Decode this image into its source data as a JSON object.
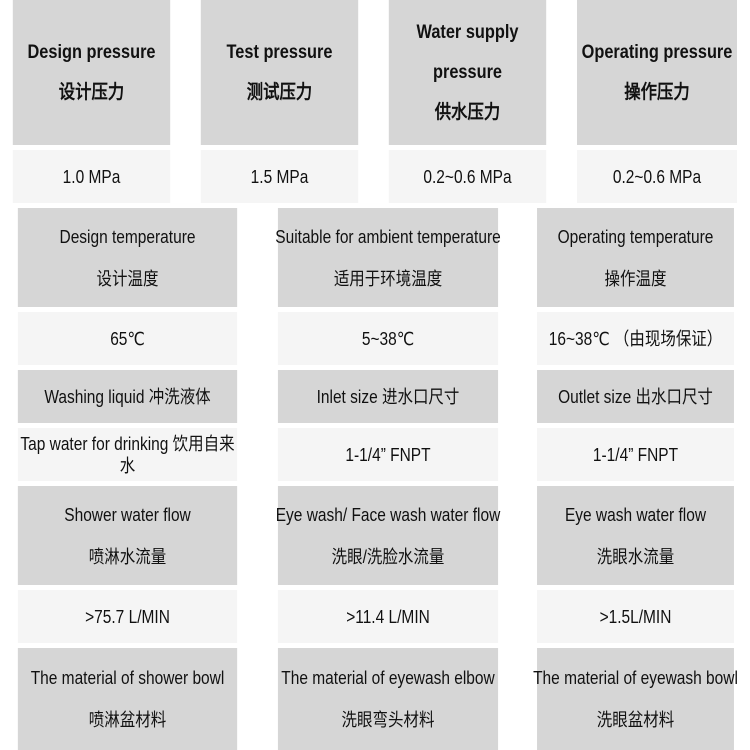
{
  "section1": {
    "headers": [
      {
        "en": "Design pressure",
        "zh": "设计压力"
      },
      {
        "en_line1": "Water supply",
        "en_line2": "pressure",
        "zh": "供水压力"
      },
      {
        "en": "Test pressure",
        "zh": "测试压力"
      },
      {
        "en": "Operating pressure",
        "zh": "操作压力"
      }
    ],
    "values": [
      "1.0 MPa",
      "1.5 MPa",
      "0.2~0.6 MPa",
      "0.2~0.6 MPa"
    ]
  },
  "section2": {
    "headers": [
      {
        "en": "Design temperature",
        "zh": "设计温度"
      },
      {
        "en": "Suitable for ambient temperature",
        "zh": "适用于环境温度"
      },
      {
        "en": "Operating temperature",
        "zh": "操作温度"
      }
    ],
    "values": [
      "65℃",
      "5~38℃",
      "16~38℃ （由现场保证）"
    ]
  },
  "section3": {
    "headers": [
      "Washing liquid 冲洗液体",
      "Inlet size 进水口尺寸",
      "Outlet size 出水口尺寸"
    ],
    "values": [
      "Tap water for drinking 饮用自来水",
      "1-1/4” FNPT",
      "1-1/4” FNPT"
    ]
  },
  "section4": {
    "headers": [
      {
        "en": "Shower water flow",
        "zh": "喷淋水流量"
      },
      {
        "en": "Eye wash/ Face wash water flow",
        "zh": "洗眼/洗脸水流量"
      },
      {
        "en": "Eye wash water flow",
        "zh": "洗眼水流量"
      }
    ],
    "values": [
      ">75.7 L/MIN",
      ">11.4 L/MIN",
      ">1.5L/MIN"
    ]
  },
  "section5": {
    "headers": [
      {
        "en": "The material of shower bowl",
        "zh": "喷淋盆材料"
      },
      {
        "en": "The material of eyewash elbow",
        "zh": "洗眼弯头材料"
      },
      {
        "en": "The material of eyewash bowl",
        "zh": "洗眼盆材料"
      }
    ]
  }
}
